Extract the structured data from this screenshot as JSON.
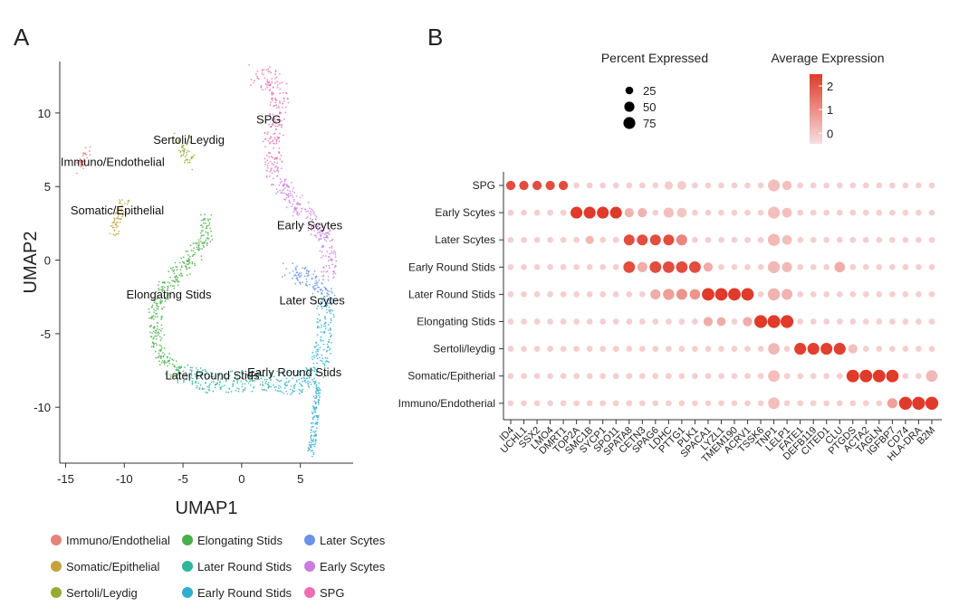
{
  "panels": {
    "a_label": "A",
    "b_label": "B"
  },
  "chart_data": [
    {
      "type": "scatter",
      "panel": "A",
      "title": "",
      "xlabel": "UMAP1",
      "ylabel": "UMAP2",
      "xlim": [
        -15.5,
        9.5
      ],
      "ylim": [
        -13.8,
        13.5
      ],
      "xticks": [
        -15,
        -10,
        -5,
        0,
        5
      ],
      "yticks": [
        10,
        5,
        0,
        -5,
        -10
      ],
      "legend_placement": "bottom",
      "clusters": [
        {
          "name": "Immuno/Endothelial",
          "color": "#e5827a",
          "label": "Immuno/Endothelial",
          "label_pos": [
            -11,
            6.4
          ],
          "path": [
            [
              -13.2,
              7.4
            ],
            [
              -13.6,
              6.6
            ],
            [
              -13.9,
              6.2
            ]
          ],
          "width": 0.45
        },
        {
          "name": "Somatic/Epithelial",
          "color": "#c4a23e",
          "label": "Somatic/Epithelial",
          "label_pos": [
            -10.6,
            3.1
          ],
          "path": [
            [
              -9.9,
              4.0
            ],
            [
              -10.3,
              3.3
            ],
            [
              -10.7,
              2.6
            ],
            [
              -10.9,
              1.8
            ]
          ],
          "width": 0.55
        },
        {
          "name": "Sertoli/Leydig",
          "color": "#96ab32",
          "label": "Sertoli/Leydig",
          "label_pos": [
            -4.5,
            7.9
          ],
          "path": [
            [
              -5.2,
              8.3
            ],
            [
              -4.8,
              7.7
            ],
            [
              -4.6,
              7.0
            ],
            [
              -4.5,
              6.5
            ]
          ],
          "width": 0.75
        },
        {
          "name": "Elongating Stids",
          "color": "#49b049",
          "label": "Elongating Stids",
          "label_pos": [
            -6.2,
            -2.6
          ],
          "path": [
            [
              -2.9,
              3.0
            ],
            [
              -3.1,
              1.5
            ],
            [
              -4.3,
              0.2
            ],
            [
              -5.6,
              -1.0
            ],
            [
              -6.9,
              -2.3
            ],
            [
              -7.4,
              -3.8
            ],
            [
              -7.1,
              -5.8
            ],
            [
              -6.2,
              -7.2
            ],
            [
              -5.1,
              -7.8
            ]
          ],
          "width": 0.7
        },
        {
          "name": "Later Round Stids",
          "color": "#2fb59b",
          "label": "Later Round Stids",
          "label_pos": [
            -2.5,
            -8.1
          ],
          "path": [
            [
              -5.1,
              -7.8
            ],
            [
              -3.5,
              -8.2
            ],
            [
              -1.5,
              -8.3
            ],
            [
              0.5,
              -8.2
            ],
            [
              2.5,
              -8.2
            ]
          ],
          "width": 0.95
        },
        {
          "name": "Early Round Stids",
          "color": "#32aed0",
          "label": "Early Round Stids",
          "label_pos": [
            4.5,
            -7.9
          ],
          "path": [
            [
              2.5,
              -8.2
            ],
            [
              4.3,
              -8.5
            ],
            [
              5.7,
              -8.1
            ],
            [
              6.6,
              -7.1
            ],
            [
              7.0,
              -5.5
            ],
            [
              7.2,
              -3.3
            ],
            [
              7.0,
              -2.4
            ]
          ],
          "width": 0.95
        },
        {
          "name": "Later Scytes",
          "color": "#6a93e6",
          "label": "Later Scytes",
          "label_pos": [
            6.0,
            -3.0
          ],
          "path": [
            [
              4.0,
              -0.6
            ],
            [
              5.2,
              -1.1
            ],
            [
              6.3,
              -1.5
            ],
            [
              7.3,
              -2.4
            ],
            [
              7.4,
              -3.0
            ]
          ],
          "width": 0.75
        },
        {
          "name": "Early Scytes",
          "color": "#c97ddf",
          "label": "Early Scytes",
          "label_pos": [
            5.8,
            2.1
          ],
          "path": [
            [
              2.8,
              6.0
            ],
            [
              3.9,
              4.4
            ],
            [
              5.6,
              3.0
            ],
            [
              7.1,
              1.6
            ],
            [
              7.6,
              0.3
            ],
            [
              7.3,
              -1.0
            ]
          ],
          "width": 0.8
        },
        {
          "name": "SPG",
          "color": "#ec6fae",
          "label": "SPG",
          "label_pos": [
            2.3,
            9.3
          ],
          "path": [
            [
              1.2,
              12.6
            ],
            [
              2.8,
              12.1
            ],
            [
              3.3,
              11.0
            ],
            [
              3.1,
              9.6
            ],
            [
              2.6,
              8.4
            ],
            [
              2.4,
              7.2
            ],
            [
              2.8,
              6.0
            ]
          ],
          "width": 0.95
        },
        {
          "name": "tail",
          "color": "#32aed0",
          "label": "",
          "label_pos": null,
          "path": [
            [
              6.5,
              -8.4
            ],
            [
              6.3,
              -10.2
            ],
            [
              6.1,
              -12.0
            ],
            [
              5.9,
              -13.2
            ]
          ],
          "width": 0.35
        }
      ],
      "legend": [
        {
          "label": "Immuno/Endothelial",
          "color": "#e5827a"
        },
        {
          "label": "Somatic/Epithelial",
          "color": "#c4a23e"
        },
        {
          "label": "Sertoli/Leydig",
          "color": "#96ab32"
        },
        {
          "label": "Elongating Stids",
          "color": "#49b049"
        },
        {
          "label": "Later Round Stids",
          "color": "#2fb59b"
        },
        {
          "label": "Early Round Stids",
          "color": "#32aed0"
        },
        {
          "label": "Later Scytes",
          "color": "#6a93e6"
        },
        {
          "label": "Early Scytes",
          "color": "#c97ddf"
        },
        {
          "label": "SPG",
          "color": "#ec6fae"
        }
      ]
    },
    {
      "type": "dot",
      "panel": "B",
      "rows": [
        "SPG",
        "Early Scytes",
        "Later Scytes",
        "Early Round Stids",
        "Later Round Stids",
        "Elongating Stids",
        "Sertoli/leydig",
        "Somatic/Epitherial",
        "Immuno/Endotherial"
      ],
      "genes": [
        "ID4",
        "UCHL1",
        "SSX2",
        "LMO4",
        "DMRT1",
        "TOP2A",
        "SMC1B",
        "SYCP1",
        "SPO11",
        "SPATA8",
        "CETN3",
        "SPAG6",
        "LDHC",
        "PTTG1",
        "PLK1",
        "SPACA1",
        "LYZL1",
        "TMEM190",
        "ACRV1",
        "TSSK6",
        "TNP1",
        "LELP1",
        "FATE1",
        "DEFB119",
        "CITED1",
        "CLU",
        "PTGDS",
        "ACTA2",
        "TAGLN",
        "IGFBP7",
        "CD74",
        "HLA-DRA",
        "B2M"
      ],
      "high_percent": 85,
      "high_expression": 2.6,
      "bg_percent": 12,
      "bg_expression": 0.25,
      "highlights": [
        {
          "row": 0,
          "genes": [
            0,
            1,
            2,
            3,
            4
          ],
          "percent": 40,
          "expression": 2.3
        },
        {
          "row": 1,
          "genes": [
            5,
            6,
            7,
            8
          ],
          "percent": 75,
          "expression": 2.6
        },
        {
          "row": 2,
          "genes": [
            9,
            10,
            11,
            12
          ],
          "percent": 60,
          "expression": 2.3
        },
        {
          "row": 3,
          "genes": [
            9,
            11,
            12,
            13,
            14
          ],
          "percent": 72,
          "expression": 2.3
        },
        {
          "row": 4,
          "genes": [
            15,
            16,
            17,
            18
          ],
          "percent": 85,
          "expression": 2.6
        },
        {
          "row": 5,
          "genes": [
            19,
            20,
            21
          ],
          "percent": 90,
          "expression": 2.6
        },
        {
          "row": 6,
          "genes": [
            22,
            23,
            24,
            25
          ],
          "percent": 75,
          "expression": 2.5
        },
        {
          "row": 7,
          "genes": [
            26,
            27,
            28,
            29
          ],
          "percent": 85,
          "expression": 2.6
        },
        {
          "row": 8,
          "genes": [
            30,
            31,
            32
          ],
          "percent": 92,
          "expression": 2.6
        }
      ],
      "secondary": [
        {
          "row": 0,
          "gene": 20,
          "percent": 75,
          "expression": 0.5
        },
        {
          "row": 0,
          "gene": 21,
          "percent": 40,
          "expression": 0.5
        },
        {
          "row": 0,
          "gene": 13,
          "percent": 35,
          "expression": 0.3
        },
        {
          "row": 0,
          "gene": 12,
          "percent": 30,
          "expression": 0.3
        },
        {
          "row": 1,
          "gene": 9,
          "percent": 40,
          "expression": 0.7
        },
        {
          "row": 1,
          "gene": 10,
          "percent": 40,
          "expression": 0.7
        },
        {
          "row": 1,
          "gene": 12,
          "percent": 50,
          "expression": 0.5
        },
        {
          "row": 1,
          "gene": 13,
          "percent": 45,
          "expression": 0.4
        },
        {
          "row": 1,
          "gene": 20,
          "percent": 75,
          "expression": 0.5
        },
        {
          "row": 1,
          "gene": 21,
          "percent": 45,
          "expression": 0.5
        },
        {
          "row": 2,
          "gene": 13,
          "percent": 60,
          "expression": 1.4
        },
        {
          "row": 2,
          "gene": 20,
          "percent": 78,
          "expression": 0.6
        },
        {
          "row": 2,
          "gene": 21,
          "percent": 45,
          "expression": 0.5
        },
        {
          "row": 2,
          "gene": 6,
          "percent": 30,
          "expression": 0.6
        },
        {
          "row": 3,
          "gene": 10,
          "percent": 50,
          "expression": 0.8
        },
        {
          "row": 3,
          "gene": 15,
          "percent": 40,
          "expression": 0.8
        },
        {
          "row": 3,
          "gene": 20,
          "percent": 78,
          "expression": 0.6
        },
        {
          "row": 3,
          "gene": 21,
          "percent": 50,
          "expression": 0.6
        },
        {
          "row": 3,
          "gene": 25,
          "percent": 55,
          "expression": 0.8
        },
        {
          "row": 4,
          "gene": 12,
          "percent": 65,
          "expression": 1.0
        },
        {
          "row": 4,
          "gene": 13,
          "percent": 60,
          "expression": 1.2
        },
        {
          "row": 4,
          "gene": 14,
          "percent": 55,
          "expression": 1.2
        },
        {
          "row": 4,
          "gene": 11,
          "percent": 50,
          "expression": 0.8
        },
        {
          "row": 4,
          "gene": 20,
          "percent": 80,
          "expression": 0.7
        },
        {
          "row": 4,
          "gene": 21,
          "percent": 60,
          "expression": 0.7
        },
        {
          "row": 5,
          "gene": 15,
          "percent": 40,
          "expression": 0.8
        },
        {
          "row": 5,
          "gene": 16,
          "percent": 35,
          "expression": 0.8
        },
        {
          "row": 5,
          "gene": 18,
          "percent": 40,
          "expression": 0.8
        },
        {
          "row": 6,
          "gene": 20,
          "percent": 70,
          "expression": 0.6
        },
        {
          "row": 6,
          "gene": 26,
          "percent": 40,
          "expression": 0.5
        },
        {
          "row": 7,
          "gene": 20,
          "percent": 70,
          "expression": 0.5
        },
        {
          "row": 7,
          "gene": 32,
          "percent": 70,
          "expression": 0.6
        },
        {
          "row": 8,
          "gene": 20,
          "percent": 70,
          "expression": 0.5
        },
        {
          "row": 8,
          "gene": 29,
          "percent": 50,
          "expression": 1.0
        }
      ],
      "size_legend": {
        "title": "Percent Expressed",
        "values": [
          25,
          50,
          75
        ]
      },
      "color_legend": {
        "title": "Average Expression",
        "ticks": [
          2,
          1,
          0
        ],
        "low_color": "#f6dfe0",
        "high_color": "#e03a2a"
      }
    }
  ]
}
